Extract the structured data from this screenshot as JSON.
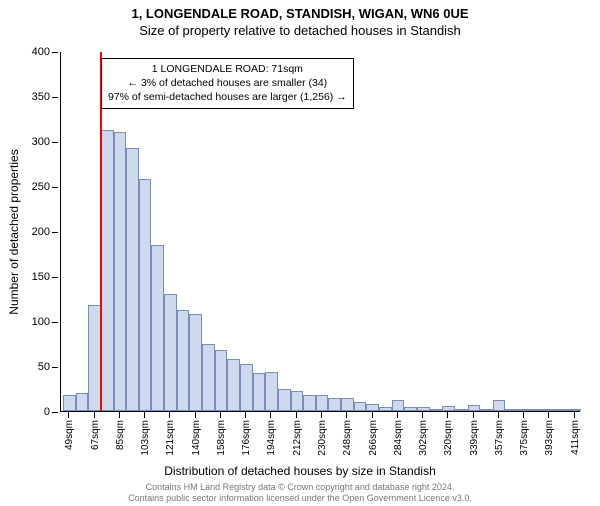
{
  "title_main": "1, LONGENDALE ROAD, STANDISH, WIGAN, WN6 0UE",
  "title_sub": "Size of property relative to detached houses in Standish",
  "ylabel": "Number of detached properties",
  "xlabel": "Distribution of detached houses by size in Standish",
  "chart": {
    "type": "histogram",
    "ylim": [
      0,
      400
    ],
    "ytick_step": 50,
    "bar_fill": "#cfd9ee",
    "bar_border": "#7a8db8",
    "background_color": "#ffffff",
    "marker_color": "#ff0000",
    "marker_x_category": "71sqm",
    "bins": [
      {
        "label": "49sqm",
        "value": 18
      },
      {
        "label": "58sqm",
        "value": 20
      },
      {
        "label": "67sqm",
        "value": 118
      },
      {
        "label": "76sqm",
        "value": 312
      },
      {
        "label": "85sqm",
        "value": 310
      },
      {
        "label": "94sqm",
        "value": 292
      },
      {
        "label": "103sqm",
        "value": 258
      },
      {
        "label": "112sqm",
        "value": 185
      },
      {
        "label": "121sqm",
        "value": 130
      },
      {
        "label": "130sqm",
        "value": 112
      },
      {
        "label": "140sqm",
        "value": 108
      },
      {
        "label": "149sqm",
        "value": 75
      },
      {
        "label": "158sqm",
        "value": 68
      },
      {
        "label": "167sqm",
        "value": 58
      },
      {
        "label": "176sqm",
        "value": 52
      },
      {
        "label": "185sqm",
        "value": 42
      },
      {
        "label": "194sqm",
        "value": 43
      },
      {
        "label": "203sqm",
        "value": 25
      },
      {
        "label": "212sqm",
        "value": 22
      },
      {
        "label": "221sqm",
        "value": 18
      },
      {
        "label": "230sqm",
        "value": 18
      },
      {
        "label": "239sqm",
        "value": 15
      },
      {
        "label": "248sqm",
        "value": 14
      },
      {
        "label": "257sqm",
        "value": 10
      },
      {
        "label": "266sqm",
        "value": 8
      },
      {
        "label": "275sqm",
        "value": 5
      },
      {
        "label": "284sqm",
        "value": 12
      },
      {
        "label": "293sqm",
        "value": 4
      },
      {
        "label": "302sqm",
        "value": 4
      },
      {
        "label": "311sqm",
        "value": 2
      },
      {
        "label": "320sqm",
        "value": 6
      },
      {
        "label": "329sqm",
        "value": 2
      },
      {
        "label": "339sqm",
        "value": 7
      },
      {
        "label": "348sqm",
        "value": 2
      },
      {
        "label": "357sqm",
        "value": 12
      },
      {
        "label": "366sqm",
        "value": 2
      },
      {
        "label": "375sqm",
        "value": 2
      },
      {
        "label": "384sqm",
        "value": 2
      },
      {
        "label": "393sqm",
        "value": 2
      },
      {
        "label": "402sqm",
        "value": 2
      },
      {
        "label": "411sqm",
        "value": 2
      }
    ],
    "xtick_every": 2
  },
  "callout": {
    "line1": "1 LONGENDALE ROAD: 71sqm",
    "line2": "← 3% of detached houses are smaller (34)",
    "line3": "97% of semi-detached houses are larger (1,256) →"
  },
  "attribution": {
    "line1": "Contains HM Land Registry data © Crown copyright and database right 2024.",
    "line2": "Contains public sector information licensed under the Open Government Licence v3.0."
  }
}
